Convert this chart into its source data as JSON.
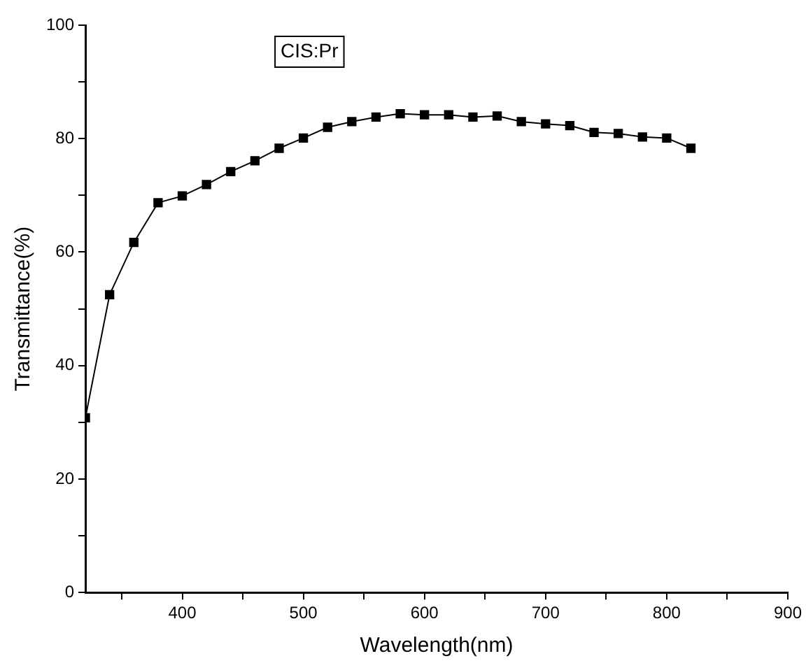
{
  "chart_data": {
    "type": "line",
    "xlabel": "Wavelength(nm)",
    "ylabel": "Transmittance(%)",
    "annotations": [
      "CIS:Pr"
    ],
    "x": [
      320,
      340,
      360,
      380,
      400,
      420,
      440,
      460,
      480,
      500,
      520,
      540,
      560,
      580,
      600,
      620,
      640,
      660,
      680,
      700,
      720,
      740,
      760,
      780,
      800,
      820
    ],
    "series": [
      {
        "color": "#000000",
        "values": [
          30.8,
          52.5,
          61.7,
          68.7,
          69.9,
          71.9,
          74.2,
          76.1,
          78.3,
          80.1,
          82.0,
          83.0,
          83.8,
          84.4,
          84.2,
          84.2,
          83.8,
          84.0,
          83.0,
          82.6,
          82.3,
          81.1,
          80.9,
          80.3,
          80.1,
          78.3
        ]
      }
    ],
    "xlim": [
      320,
      900
    ],
    "xticks": [
      {
        "value": 350,
        "label": null
      },
      400,
      {
        "value": 450,
        "label": null
      },
      500,
      {
        "value": 550,
        "label": null
      },
      600,
      {
        "value": 650,
        "label": null
      },
      700,
      {
        "value": 750,
        "label": null
      },
      800,
      {
        "value": 850,
        "label": null
      },
      900
    ],
    "ylim": [
      0,
      100
    ],
    "yticks": [
      0,
      {
        "value": 10,
        "label": null
      },
      20,
      {
        "value": 30,
        "label": null
      },
      40,
      {
        "value": 50,
        "label": null
      },
      60,
      {
        "value": 70,
        "label": null
      },
      80,
      {
        "value": 90,
        "label": null
      },
      100
    ],
    "grid": false,
    "legend": false,
    "marker": "square",
    "line_style": "solid"
  }
}
